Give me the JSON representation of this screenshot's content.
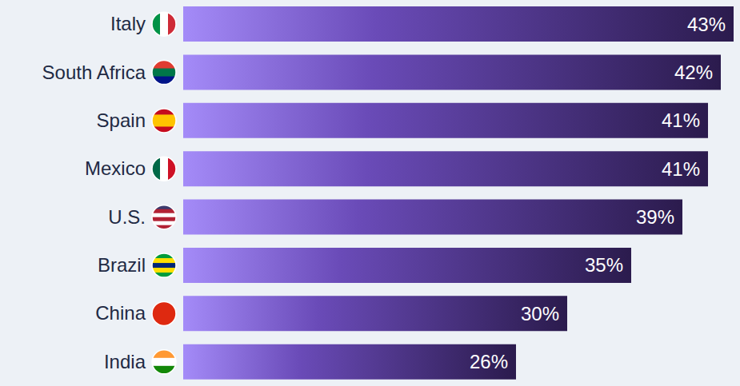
{
  "chart_data": {
    "type": "bar",
    "orientation": "horizontal",
    "categories": [
      "Italy",
      "South Africa",
      "Spain",
      "Mexico",
      "U.S.",
      "Brazil",
      "China",
      "India"
    ],
    "values": [
      43,
      42,
      41,
      41,
      39,
      35,
      30,
      26
    ],
    "value_labels": [
      "43%",
      "42%",
      "41%",
      "41%",
      "39%",
      "35%",
      "30%",
      "26%"
    ],
    "color": "#2b1b4d",
    "data_labels": true,
    "tick_labels": "y",
    "grid": false
  }
}
